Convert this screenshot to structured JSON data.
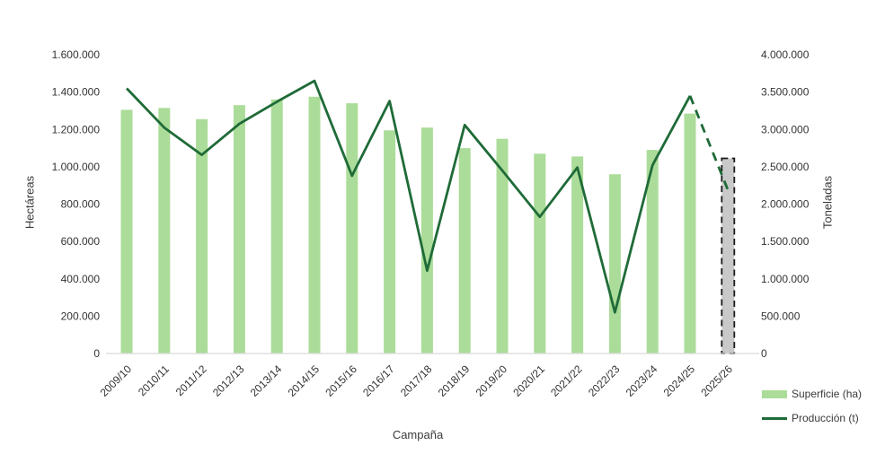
{
  "chart_data": {
    "type": "bar+line",
    "title": "",
    "xlabel": "Campaña",
    "ylabel_left": "Hectáreas",
    "ylabel_right": "Toneladas",
    "categories": [
      "2009/10",
      "2010/11",
      "2011/12",
      "2012/13",
      "2013/14",
      "2014/15",
      "2015/16",
      "2016/17",
      "2017/18",
      "2018/19",
      "2019/20",
      "2020/21",
      "2021/22",
      "2022/23",
      "2023/24",
      "2024/25",
      "2025/26"
    ],
    "series": [
      {
        "name": "Superficie (ha)",
        "type": "bar",
        "axis": "left",
        "color": "#abdc99",
        "values": [
          1305000,
          1315000,
          1255000,
          1330000,
          1360000,
          1375000,
          1340000,
          1195000,
          1210000,
          1100000,
          1150000,
          1070000,
          1055000,
          960000,
          1090000,
          1285000,
          1045000
        ],
        "last_is_estimate": true,
        "estimate_fill": "#c9c9c9",
        "estimate_border": "#1a1a1a"
      },
      {
        "name": "Producción (t)",
        "type": "line",
        "axis": "right",
        "color": "#1f6b38",
        "values": [
          3550000,
          3025000,
          2660000,
          3075000,
          3370000,
          3650000,
          2380000,
          3380000,
          1110000,
          3060000,
          2450000,
          1830000,
          2490000,
          550000,
          2520000,
          3450000,
          2200000
        ],
        "last_is_estimate": true
      }
    ],
    "y_left": {
      "min": 0,
      "max": 1600000,
      "step": 200000
    },
    "y_right": {
      "min": 0,
      "max": 4000000,
      "step": 500000
    },
    "grid": false,
    "legend_position": "bottom-right",
    "axis_line_color": "#d9d9d9",
    "tick_label_color": "#333333",
    "style_note": "última campaña estimada: barra gris con borde discontinuo y tramo de línea discontinuo"
  }
}
